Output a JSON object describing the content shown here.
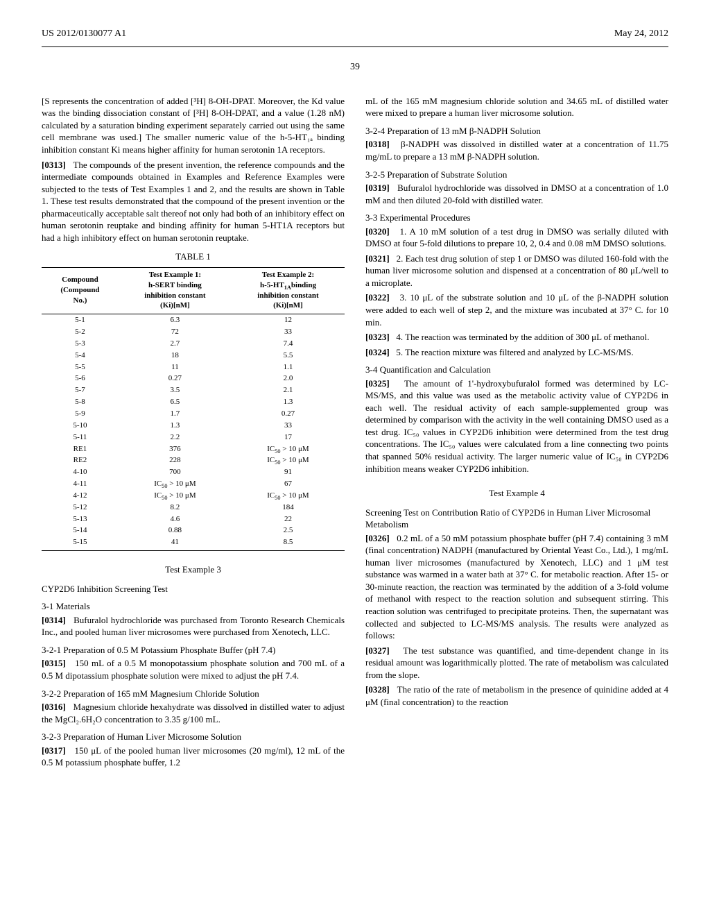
{
  "header": {
    "left": "US 2012/0130077 A1",
    "right": "May 24, 2012"
  },
  "page_number": "39",
  "left_col": {
    "p_pre0313": "[S represents the concentration of added [³H] 8-OH-DPAT. Moreover, the Kd value was the binding dissociation constant of [³H] 8-OH-DPAT, and a value (1.28 nM) calculated by a saturation binding experiment separately carried out using the same cell membrane was used.] The smaller numeric value of the h-5-HT₁ₐ binding inhibition constant Ki means higher affinity for human serotonin 1A receptors.",
    "p0313_num": "[0313]",
    "p0313": "The compounds of the present invention, the reference compounds and the intermediate compounds obtained in Examples and Reference Examples were subjected to the tests of Test Examples 1 and 2, and the results are shown in Table 1. These test results demonstrated that the compound of the present invention or the pharmaceutically acceptable salt thereof not only had both of an inhibitory effect on human serotonin reuptake and binding affinity for human 5-HT1A receptors but had a high inhibitory effect on human serotonin reuptake.",
    "table1": {
      "title": "TABLE 1",
      "columns": [
        "Compound\n(Compound\nNo.)",
        "Test Example 1:\nh-SERT binding\ninhibition constant\n(Ki)[nM]",
        "Test Example 2:\nh-5-HT₁ₐ binding\ninhibition constant\n(Ki)[nM]"
      ],
      "rows": [
        [
          "5-1",
          "6.3",
          "12"
        ],
        [
          "5-2",
          "72",
          "33"
        ],
        [
          "5-3",
          "2.7",
          "7.4"
        ],
        [
          "5-4",
          "18",
          "5.5"
        ],
        [
          "5-5",
          "11",
          "1.1"
        ],
        [
          "5-6",
          "0.27",
          "2.0"
        ],
        [
          "5-7",
          "3.5",
          "2.1"
        ],
        [
          "5-8",
          "6.5",
          "1.3"
        ],
        [
          "5-9",
          "1.7",
          "0.27"
        ],
        [
          "5-10",
          "1.3",
          "33"
        ],
        [
          "5-11",
          "2.2",
          "17"
        ],
        [
          "RE1",
          "376",
          "IC₅₀ > 10 μM"
        ],
        [
          "RE2",
          "228",
          "IC₅₀ > 10 μM"
        ],
        [
          "4-10",
          "700",
          "91"
        ],
        [
          "4-11",
          "IC₅₀ > 10 μM",
          "67"
        ],
        [
          "4-12",
          "IC₅₀ > 10 μM",
          "IC₅₀ > 10 μM"
        ],
        [
          "5-12",
          "8.2",
          "184"
        ],
        [
          "5-13",
          "4.6",
          "22"
        ],
        [
          "5-14",
          "0.88",
          "2.5"
        ],
        [
          "5-15",
          "41",
          "8.5"
        ]
      ]
    },
    "test_ex3": "Test Example 3",
    "h_cypscreen": "CYP2D6 Inhibition Screening Test",
    "h_31": "3-1 Materials",
    "p0314_num": "[0314]",
    "p0314": "Bufuralol hydrochloride was purchased from Toronto Research Chemicals Inc., and pooled human liver microsomes were purchased from Xenotech, LLC.",
    "h_321": "3-2-1 Preparation of 0.5 M Potassium Phosphate Buffer (pH 7.4)",
    "p0315_num": "[0315]",
    "p0315": "150 mL of a 0.5 M monopotassium phosphate solution and 700 mL of a 0.5 M dipotassium phosphate solution were mixed to adjust the pH 7.4.",
    "h_322": "3-2-2 Preparation of 165 mM Magnesium Chloride Solution",
    "p0316_num": "[0316]",
    "p0316": "Magnesium chloride hexahydrate was dissolved in distilled water to adjust the MgCl₂.6H₂O concentration to 3.35 g/100 mL.",
    "h_323": "3-2-3 Preparation of Human Liver Microsome Solution",
    "p0317_num": "[0317]",
    "p0317": "150 μL of the pooled human liver microsomes (20 mg/ml), 12 mL of the 0.5 M potassium phosphate buffer, 1.2"
  },
  "right_col": {
    "p_cont": "mL of the 165 mM magnesium chloride solution and 34.65 mL of distilled water were mixed to prepare a human liver microsome solution.",
    "h_324": "3-2-4 Preparation of 13 mM β-NADPH Solution",
    "p0318_num": "[0318]",
    "p0318": "β-NADPH was dissolved in distilled water at a concentration of 11.75 mg/mL to prepare a 13 mM β-NADPH solution.",
    "h_325": "3-2-5 Preparation of Substrate Solution",
    "p0319_num": "[0319]",
    "p0319": "Bufuralol hydrochloride was dissolved in DMSO at a concentration of 1.0 mM and then diluted 20-fold with distilled water.",
    "h_33": "3-3 Experimental Procedures",
    "p0320_num": "[0320]",
    "p0320": "1. A 10 mM solution of a test drug in DMSO was serially diluted with DMSO at four 5-fold dilutions to prepare 10, 2, 0.4 and 0.08 mM DMSO solutions.",
    "p0321_num": "[0321]",
    "p0321": "2. Each test drug solution of step 1 or DMSO was diluted 160-fold with the human liver microsome solution and dispensed at a concentration of 80 μL/well to a microplate.",
    "p0322_num": "[0322]",
    "p0322": "3. 10 μL of the substrate solution and 10 μL of the β-NADPH solution were added to each well of step 2, and the mixture was incubated at 37° C. for 10 min.",
    "p0323_num": "[0323]",
    "p0323": "4. The reaction was terminated by the addition of 300 μL of methanol.",
    "p0324_num": "[0324]",
    "p0324": "5. The reaction mixture was filtered and analyzed by LC-MS/MS.",
    "h_34": "3-4 Quantification and Calculation",
    "p0325_num": "[0325]",
    "p0325": "The amount of 1'-hydroxybufuralol formed was determined by LC-MS/MS, and this value was used as the metabolic activity value of CYP2D6 in each well. The residual activity of each sample-supplemented group was determined by comparison with the activity in the well containing DMSO used as a test drug. IC₅₀ values in CYP2D6 inhibition were determined from the test drug concentrations. The IC₅₀ values were calculated from a line connecting two points that spanned 50% residual activity. The larger numeric value of IC₅₀ in CYP2D6 inhibition means weaker CYP2D6 inhibition.",
    "test_ex4": "Test Example 4",
    "h_screen4": "Screening Test on Contribution Ratio of CYP2D6 in Human Liver Microsomal Metabolism",
    "p0326_num": "[0326]",
    "p0326": "0.2 mL of a 50 mM potassium phosphate buffer (pH 7.4) containing 3 mM (final concentration) NADPH (manufactured by Oriental Yeast Co., Ltd.), 1 mg/mL human liver microsomes (manufactured by Xenotech, LLC) and 1 μM test substance was warmed in a water bath at 37° C. for metabolic reaction. After 15- or 30-minute reaction, the reaction was terminated by the addition of a 3-fold volume of methanol with respect to the reaction solution and subsequent stirring. This reaction solution was centrifuged to precipitate proteins. Then, the supernatant was collected and subjected to LC-MS/MS analysis. The results were analyzed as follows:",
    "p0327_num": "[0327]",
    "p0327": "The test substance was quantified, and time-dependent change in its residual amount was logarithmically plotted. The rate of metabolism was calculated from the slope.",
    "p0328_num": "[0328]",
    "p0328": "The ratio of the rate of metabolism in the presence of quinidine added at 4 μM (final concentration) to the reaction"
  }
}
